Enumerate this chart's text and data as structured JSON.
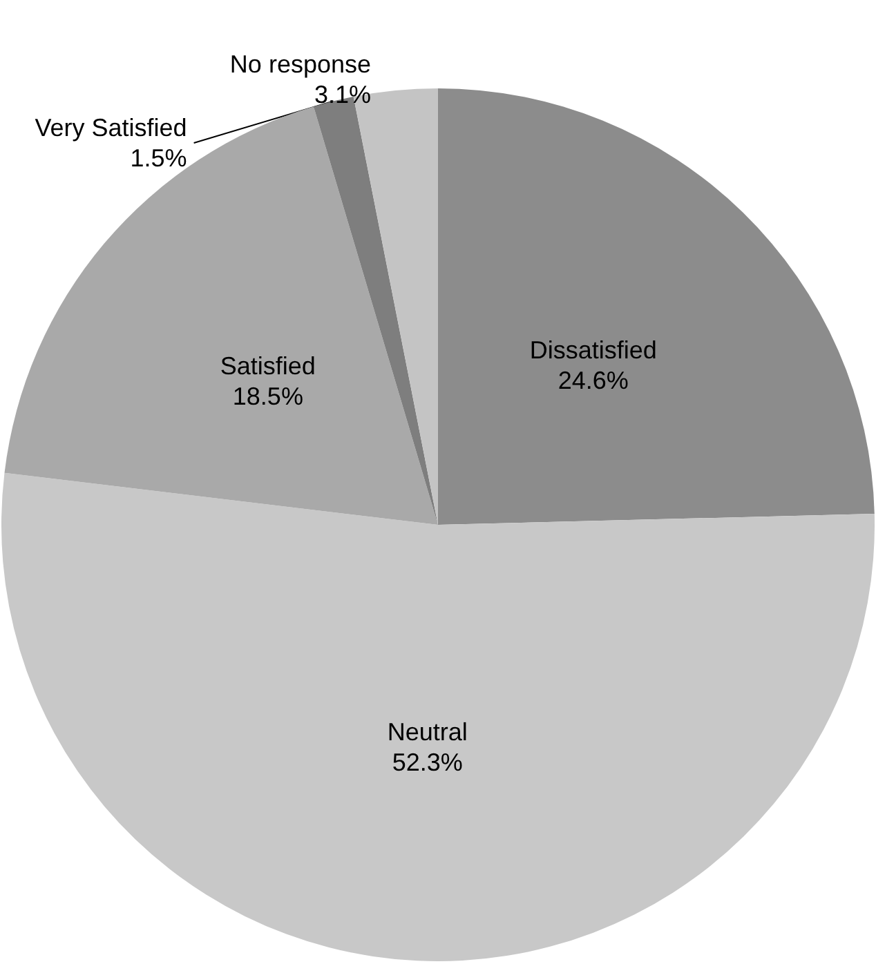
{
  "chart_data": {
    "type": "pie",
    "categories": [
      "Dissatisfied",
      "Neutral",
      "Satisfied",
      "Very Satisfied",
      "No response"
    ],
    "values": [
      24.6,
      52.3,
      18.5,
      1.5,
      3.1
    ],
    "value_labels": [
      "24.6%",
      "52.3%",
      "18.5%",
      "1.5%",
      "3.1%"
    ],
    "colors": [
      "#8c8c8c",
      "#c8c8c8",
      "#a9a9a9",
      "#7e7e7e",
      "#c4c4c4"
    ],
    "legend": false
  }
}
